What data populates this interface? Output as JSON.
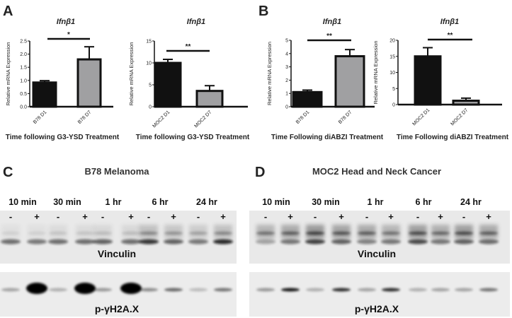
{
  "panels": {
    "A": "A",
    "B": "B",
    "C": "C",
    "D": "D"
  },
  "chart_data": [
    {
      "type": "bar",
      "panel": "A",
      "title": "Ifnβ1",
      "ylabel": "Relative mRNA Expression",
      "xlabel": "Time following G3-YSD Treatment",
      "categories": [
        "B78 D1",
        "B78 D7"
      ],
      "values": [
        0.92,
        1.8
      ],
      "errors": [
        0.07,
        0.48
      ],
      "colors": [
        "#111111",
        "#a0a0a2"
      ],
      "ylim": [
        0,
        2.5
      ],
      "yticks": [
        "0.0",
        "0.5",
        "1.0",
        "1.5",
        "2.0",
        "2.5"
      ],
      "significance": "*"
    },
    {
      "type": "bar",
      "panel": "A",
      "title": "Ifnβ1",
      "ylabel": "Relative mRNA Expression",
      "xlabel": "Time following G3-YSD Treatment",
      "categories": [
        "MOC2 D1",
        "MOC2 D7"
      ],
      "values": [
        10,
        3.6
      ],
      "errors": [
        0.8,
        1.2
      ],
      "colors": [
        "#111111",
        "#a0a0a2"
      ],
      "ylim": [
        0,
        15
      ],
      "yticks": [
        "0",
        "5",
        "10",
        "15"
      ],
      "significance": "**"
    },
    {
      "type": "bar",
      "panel": "B",
      "title": "Ifnβ1",
      "ylabel": "Relative mRNA Expression",
      "xlabel": "Time Following diABZI Treatment",
      "categories": [
        "B78 D1",
        "B78 D7"
      ],
      "values": [
        1.1,
        3.8
      ],
      "errors": [
        0.15,
        0.5
      ],
      "colors": [
        "#111111",
        "#a0a0a2"
      ],
      "ylim": [
        0,
        5
      ],
      "yticks": [
        "0",
        "1",
        "2",
        "3",
        "4",
        "5"
      ],
      "significance": "**"
    },
    {
      "type": "bar",
      "panel": "B",
      "title": "Ifnβ1",
      "ylabel": "Relative mRNA Expression",
      "xlabel": "Time Following diABZI Treatment",
      "categories": [
        "MOC2 D1",
        "MOC2 D7"
      ],
      "values": [
        15,
        1.2
      ],
      "errors": [
        2.7,
        0.8
      ],
      "colors": [
        "#111111",
        "#a0a0a2"
      ],
      "ylim": [
        0,
        20
      ],
      "yticks": [
        "0",
        "5",
        "10",
        "15",
        "20"
      ],
      "significance": "**"
    }
  ],
  "blots": [
    {
      "panel": "C",
      "title": "B78 Melanoma",
      "timepoints": [
        "10 min",
        "30 min",
        "1 hr",
        "6 hr",
        "24 hr"
      ],
      "signs": [
        "-",
        "+"
      ],
      "bands": [
        "Vinculin",
        "p-γH2A.X"
      ]
    },
    {
      "panel": "D",
      "title": "MOC2  Head and Neck Cancer",
      "timepoints": [
        "10 min",
        "30 min",
        "1 hr",
        "6 hr",
        "24 hr"
      ],
      "signs": [
        "-",
        "+"
      ],
      "bands": [
        "Vinculin",
        "p-γH2A.X"
      ]
    }
  ]
}
